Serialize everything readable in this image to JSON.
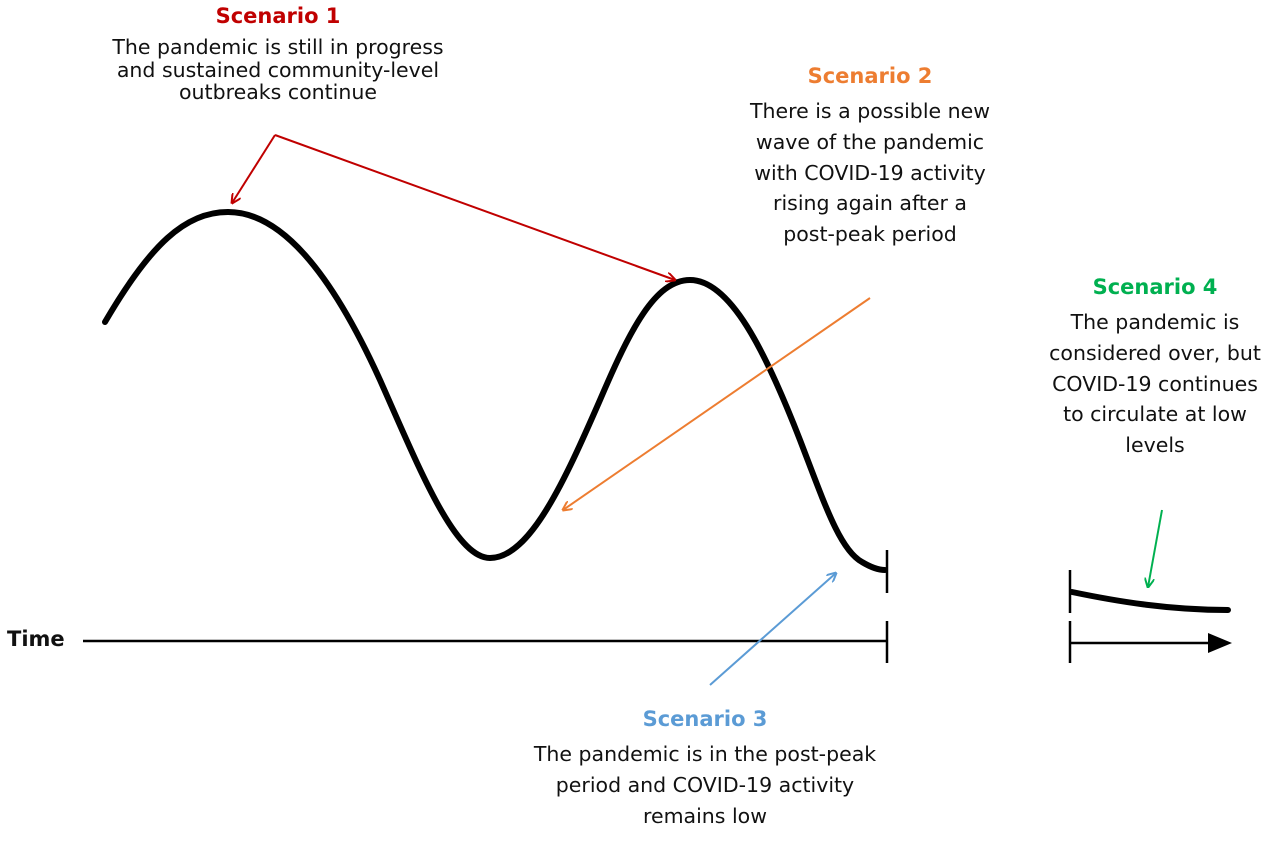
{
  "colors": {
    "curve": "#000000",
    "scenario1": "#c00000",
    "scenario2": "#ed7d31",
    "scenario3": "#5b9bd5",
    "scenario4": "#00b050"
  },
  "time_label": "Time",
  "scenarios": [
    {
      "title": "Scenario 1",
      "description": "The pandemic is still in progress\nand sustained community-level\noutbreaks continue"
    },
    {
      "title": "Scenario 2",
      "description": "There is a possible new\nwave of the pandemic\nwith COVID-19 activity\nrising again after a\npost-peak period"
    },
    {
      "title": "Scenario 3",
      "description": "The pandemic is in the post-peak\nperiod and COVID-19 activity\nremains low"
    },
    {
      "title": "Scenario 4",
      "description": "The pandemic is\nconsidered over, but\nCOVID-19 continues\nto circulate at low\nlevels"
    }
  ]
}
